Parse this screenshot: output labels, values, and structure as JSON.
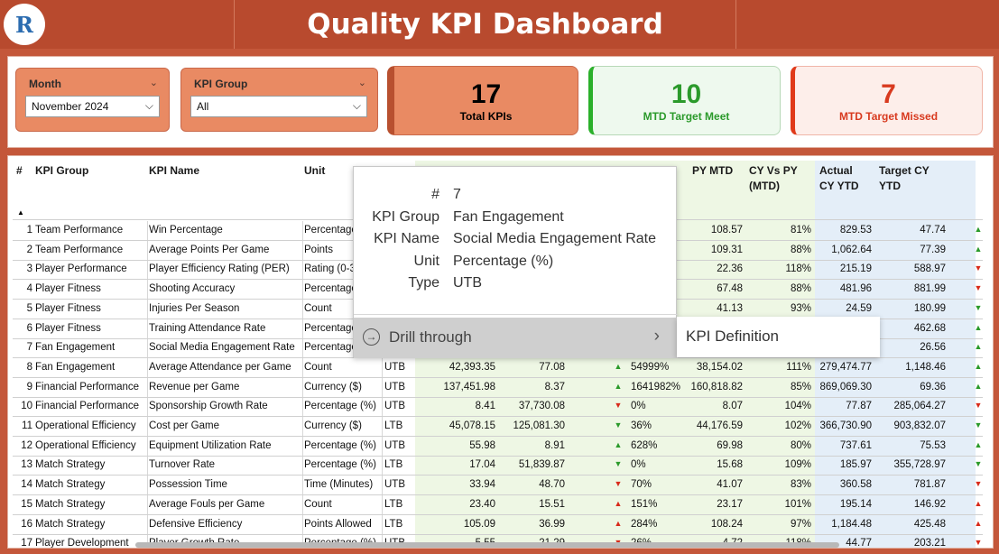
{
  "header": {
    "title": "Quality KPI Dashboard",
    "logo_text": "R"
  },
  "filters": {
    "month": {
      "label": "Month",
      "value": "November 2024"
    },
    "kpi_group": {
      "label": "KPI Group",
      "value": "All"
    }
  },
  "cards": {
    "total": {
      "value": "17",
      "label": "Total KPIs"
    },
    "meet": {
      "value": "10",
      "label": "MTD Target Meet"
    },
    "missed": {
      "value": "7",
      "label": "MTD Target Missed"
    }
  },
  "table": {
    "headers": {
      "num": "#",
      "group": "KPI Group",
      "name": "KPI Name",
      "unit": "Unit",
      "pymtd": "PY MTD",
      "cvpy_1": "CY Vs PY",
      "cvpy_2": "(MTD)",
      "acy_1": "Actual",
      "acy_2": "CY YTD",
      "tcy_1": "Target CY",
      "tcy_2": "YTD"
    },
    "rows": [
      {
        "n": "1",
        "g": "Team Performance",
        "k": "Win Percentage",
        "u": "Percentage",
        "t": "",
        "a": "",
        "tg": "",
        "ar1": "",
        "ar1c": "",
        "pc": "",
        "pm": "108.57",
        "cv": "81%",
        "ay": "829.53",
        "ty": "47.74",
        "ar2": "▲",
        "ar2c": "up"
      },
      {
        "n": "2",
        "g": "Team Performance",
        "k": "Average Points Per Game",
        "u": "Points",
        "t": "",
        "a": "",
        "tg": "",
        "ar1": "",
        "ar1c": "",
        "pc": "",
        "pm": "109.31",
        "cv": "88%",
        "ay": "1,062.64",
        "ty": "77.39",
        "ar2": "▲",
        "ar2c": "up"
      },
      {
        "n": "3",
        "g": "Player Performance",
        "k": "Player Efficiency Rating (PER)",
        "u": "Rating (0-3",
        "t": "",
        "a": "",
        "tg": "",
        "ar1": "",
        "ar1c": "",
        "pc": "",
        "pm": "22.36",
        "cv": "118%",
        "ay": "215.19",
        "ty": "588.97",
        "ar2": "▼",
        "ar2c": "down"
      },
      {
        "n": "4",
        "g": "Player Fitness",
        "k": "Shooting Accuracy",
        "u": "Percentage",
        "t": "",
        "a": "",
        "tg": "",
        "ar1": "",
        "ar1c": "",
        "pc": "",
        "pm": "67.48",
        "cv": "88%",
        "ay": "481.96",
        "ty": "881.99",
        "ar2": "▼",
        "ar2c": "down"
      },
      {
        "n": "5",
        "g": "Player Fitness",
        "k": "Injuries Per Season",
        "u": "Count",
        "t": "",
        "a": "",
        "tg": "",
        "ar1": "",
        "ar1c": "",
        "pc": "",
        "pm": "41.13",
        "cv": "93%",
        "ay": "24.59",
        "ty": "180.99",
        "ar2": "▼",
        "ar2c": "up"
      },
      {
        "n": "6",
        "g": "Player Fitness",
        "k": "Training Attendance Rate",
        "u": "Percentage",
        "t": "",
        "a": "",
        "tg": "",
        "ar1": "",
        "ar1c": "",
        "pc": "",
        "pm": "",
        "cv": "",
        "ay": "",
        "ty": "462.68",
        "ar2": "▲",
        "ar2c": "up"
      },
      {
        "n": "7",
        "g": "Fan Engagement",
        "k": "Social Media Engagement Rate",
        "u": "Percentage",
        "t": "",
        "a": "",
        "tg": "",
        "ar1": "",
        "ar1c": "",
        "pc": "",
        "pm": "",
        "cv": "",
        "ay": "",
        "ty": "26.56",
        "ar2": "▲",
        "ar2c": "up"
      },
      {
        "n": "8",
        "g": "Fan Engagement",
        "k": "Average Attendance per Game",
        "u": "Count",
        "t": "UTB",
        "a": "42,393.35",
        "tg": "77.08",
        "ar1": "▲",
        "ar1c": "up",
        "pc": "54999%",
        "pm": "38,154.02",
        "cv": "111%",
        "ay": "279,474.77",
        "ty": "1,148.46",
        "ar2": "▲",
        "ar2c": "up"
      },
      {
        "n": "9",
        "g": "Financial Performance",
        "k": "Revenue per Game",
        "u": "Currency ($)",
        "t": "UTB",
        "a": "137,451.98",
        "tg": "8.37",
        "ar1": "▲",
        "ar1c": "up",
        "pc": "1641982%",
        "pm": "160,818.82",
        "cv": "85%",
        "ay": "869,069.30",
        "ty": "69.36",
        "ar2": "▲",
        "ar2c": "up"
      },
      {
        "n": "10",
        "g": "Financial Performance",
        "k": "Sponsorship Growth Rate",
        "u": "Percentage (%)",
        "t": "UTB",
        "a": "8.41",
        "tg": "37,730.08",
        "ar1": "▼",
        "ar1c": "down",
        "pc": "0%",
        "pm": "8.07",
        "cv": "104%",
        "ay": "77.87",
        "ty": "285,064.27",
        "ar2": "▼",
        "ar2c": "down"
      },
      {
        "n": "11",
        "g": "Operational Efficiency",
        "k": "Cost per Game",
        "u": "Currency ($)",
        "t": "LTB",
        "a": "45,078.15",
        "tg": "125,081.30",
        "ar1": "▼",
        "ar1c": "up",
        "pc": "36%",
        "pm": "44,176.59",
        "cv": "102%",
        "ay": "366,730.90",
        "ty": "903,832.07",
        "ar2": "▼",
        "ar2c": "up"
      },
      {
        "n": "12",
        "g": "Operational Efficiency",
        "k": "Equipment Utilization Rate",
        "u": "Percentage (%)",
        "t": "UTB",
        "a": "55.98",
        "tg": "8.91",
        "ar1": "▲",
        "ar1c": "up",
        "pc": "628%",
        "pm": "69.98",
        "cv": "80%",
        "ay": "737.61",
        "ty": "75.53",
        "ar2": "▲",
        "ar2c": "up"
      },
      {
        "n": "13",
        "g": "Match Strategy",
        "k": "Turnover Rate",
        "u": "Percentage (%)",
        "t": "LTB",
        "a": "17.04",
        "tg": "51,839.87",
        "ar1": "▼",
        "ar1c": "up",
        "pc": "0%",
        "pm": "15.68",
        "cv": "109%",
        "ay": "185.97",
        "ty": "355,728.97",
        "ar2": "▼",
        "ar2c": "up"
      },
      {
        "n": "14",
        "g": "Match Strategy",
        "k": "Possession Time",
        "u": "Time (Minutes)",
        "t": "UTB",
        "a": "33.94",
        "tg": "48.70",
        "ar1": "▼",
        "ar1c": "down",
        "pc": "70%",
        "pm": "41.07",
        "cv": "83%",
        "ay": "360.58",
        "ty": "781.87",
        "ar2": "▼",
        "ar2c": "down"
      },
      {
        "n": "15",
        "g": "Match Strategy",
        "k": "Average Fouls per Game",
        "u": "Count",
        "t": "LTB",
        "a": "23.40",
        "tg": "15.51",
        "ar1": "▲",
        "ar1c": "upred",
        "pc": "151%",
        "pm": "23.17",
        "cv": "101%",
        "ay": "195.14",
        "ty": "146.92",
        "ar2": "▲",
        "ar2c": "upred"
      },
      {
        "n": "16",
        "g": "Match Strategy",
        "k": "Defensive Efficiency",
        "u": "Points Allowed",
        "t": "LTB",
        "a": "105.09",
        "tg": "36.99",
        "ar1": "▲",
        "ar1c": "upred",
        "pc": "284%",
        "pm": "108.24",
        "cv": "97%",
        "ay": "1,184.48",
        "ty": "425.48",
        "ar2": "▲",
        "ar2c": "upred"
      },
      {
        "n": "17",
        "g": "Player Development",
        "k": "Player Growth Rate",
        "u": "Percentage (%)",
        "t": "UTB",
        "a": "5.55",
        "tg": "21.29",
        "ar1": "▼",
        "ar1c": "down",
        "pc": "26%",
        "pm": "4.72",
        "cv": "118%",
        "ay": "44.77",
        "ty": "203.21",
        "ar2": "▼",
        "ar2c": "down"
      }
    ]
  },
  "tooltip": {
    "rows": [
      {
        "key": "#",
        "val": "7"
      },
      {
        "key": "KPI Group",
        "val": "Fan Engagement"
      },
      {
        "key": "KPI Name",
        "val": "Social Media Engagement Rate"
      },
      {
        "key": "Unit",
        "val": "Percentage (%)"
      },
      {
        "key": "Type",
        "val": "UTB"
      }
    ],
    "drill_label": "Drill through",
    "submenu_item": "KPI Definition"
  }
}
